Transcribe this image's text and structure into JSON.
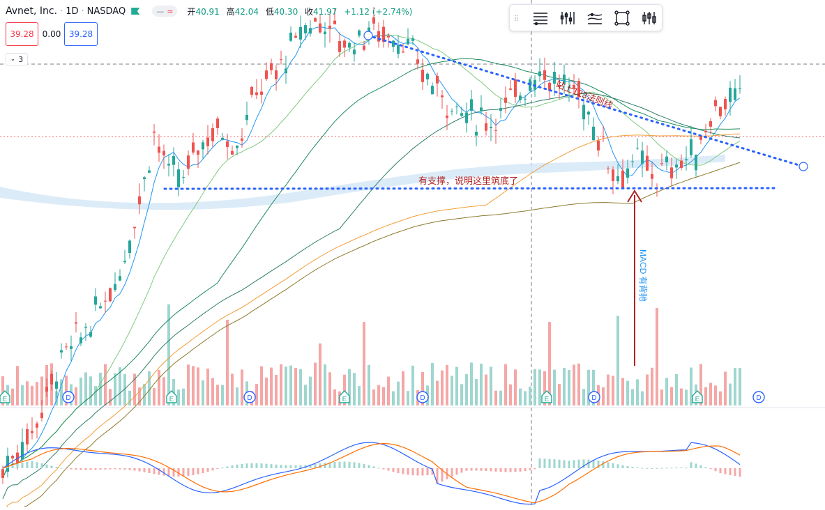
{
  "header": {
    "symbol": "Avnet, Inc.",
    "interval": "1D",
    "exchange": "NASDAQ",
    "flag_color": "#22ab94",
    "ohlc": {
      "open_label": "开",
      "open": "40.91",
      "high_label": "高",
      "high": "42.04",
      "low_label": "低",
      "low": "40.30",
      "close_label": "收",
      "close": "41.97",
      "change": "+1.12 (+2.74%)"
    }
  },
  "price_boxes": {
    "bid": "39.28",
    "spread": "0.00",
    "ask": "39.28"
  },
  "indicator_toggle": {
    "count": "3"
  },
  "toolbar": {
    "icons": [
      "line-settings-icon",
      "bars-icon",
      "multi-line-icon",
      "rectangle-icon",
      "candles-icon"
    ]
  },
  "colors": {
    "up": "#26a69a",
    "down": "#ef5350",
    "vol_up": "#9fd6cf",
    "vol_down": "#f5a7a6",
    "ma5": "#2196f3",
    "ma20": "#7fc97f",
    "ma60": "#1b8a5a",
    "ma120": "#2e7d6b",
    "ma250": "#f39c34",
    "ma_olive": "#8b7a2e",
    "annotation_red": "#b22222",
    "annotation_blue": "#2196f3",
    "trend_dots": "#2962ff"
  },
  "annotations": {
    "resistance": "站上123法则线",
    "support": "有支撑，说明这里筑底了",
    "macd_note": "MACD 有背驰"
  },
  "chart_data": {
    "type": "candlestick",
    "ylim": [
      36,
      44
    ],
    "reference_lines": {
      "high_dashed": 42.04,
      "close_dotted": 41.0
    },
    "trendline": {
      "from_index": 66,
      "from_price": 43.6,
      "to_index": 144,
      "to_price": 39.6
    },
    "support_line": {
      "price": 38.9
    },
    "events": {
      "earnings": [
        1,
        31,
        62,
        98,
        125
      ],
      "dividends": [
        12,
        44,
        76,
        106,
        136
      ]
    },
    "macd_ylim": [
      -1.2,
      1.2
    ]
  }
}
